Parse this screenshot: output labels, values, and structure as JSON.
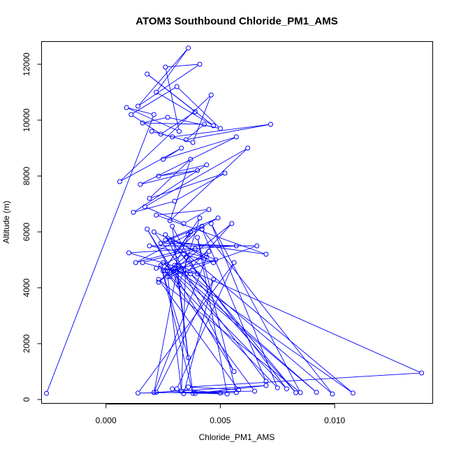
{
  "chart_data": {
    "type": "line",
    "title": "ATOM3 Southbound Chloride_PM1_AMS",
    "xlabel": "Chloride_PM1_AMS",
    "ylabel": "Altitude (m)",
    "xlim": [
      -0.0028,
      0.0143
    ],
    "ylim": [
      -150,
      12800
    ],
    "xticks": [
      0.0,
      0.005,
      0.01
    ],
    "xtick_labels": [
      "0.000",
      "0.005",
      "0.010"
    ],
    "yticks": [
      0,
      2000,
      4000,
      6000,
      8000,
      10000,
      12000
    ],
    "ytick_labels": [
      "0",
      "2000",
      "4000",
      "6000",
      "8000",
      "10000",
      "12000"
    ],
    "grid": false,
    "series_color": "#0000ff",
    "marker": "open-circle",
    "series": [
      {
        "x": [
          -0.0026,
          0.0021,
          0.0009,
          0.0032,
          0.0026,
          0.0041,
          0.0014,
          0.0036,
          0.0022,
          0.0047,
          0.0018,
          0.0039,
          0.0024,
          0.0011,
          0.0031,
          0.005,
          0.0027,
          0.0016,
          0.0043,
          0.0035,
          0.0072,
          0.0029,
          0.002,
          0.0038,
          0.0046,
          0.0006,
          0.0033,
          0.0025,
          0.0057,
          0.0015,
          0.004,
          0.0023,
          0.0044,
          0.0012,
          0.003,
          0.0052,
          0.0019,
          0.0037,
          0.0028,
          0.0062,
          0.0017,
          0.0034,
          0.0045,
          0.0022,
          0.007,
          0.0026,
          0.0049,
          0.0036,
          0.0013,
          0.0031,
          0.0042,
          0.0024,
          0.0057,
          0.001,
          0.0033,
          0.0021,
          0.0048,
          0.0027,
          0.0039,
          0.0016,
          0.0035,
          0.0055,
          0.0023,
          0.003,
          0.0044,
          0.0019,
          0.0066,
          0.0028,
          0.0037,
          0.0025,
          0.0041,
          0.0032,
          0.0018,
          0.0056,
          0.0026,
          0.0047,
          0.0034,
          0.0022,
          0.004,
          0.0029,
          0.0036,
          0.0024,
          0.0038,
          0.0031,
          0.0021,
          0.0045,
          0.0027,
          0.0033,
          0.0035,
          0.0079,
          0.0025,
          0.0092,
          0.003,
          0.0108,
          0.0028,
          0.0083,
          0.0037,
          0.0099,
          0.0042,
          0.007,
          0.0032,
          0.0138,
          0.0036,
          0.0058,
          0.0023,
          0.0085,
          0.0046,
          0.0075,
          0.0026,
          0.0065,
          0.0014,
          0.0056,
          0.0031,
          0.005,
          0.0039,
          0.007,
          0.0021,
          0.0057,
          0.004,
          0.0053,
          0.0022,
          0.0047,
          0.0034,
          0.0029
        ],
        "y": [
          220,
          10200,
          10450,
          9600,
          11900,
          12000,
          10500,
          12580,
          11000,
          9800,
          11650,
          10300,
          9500,
          10200,
          11200,
          9700,
          10100,
          9900,
          9850,
          9300,
          9850,
          9400,
          9600,
          9200,
          10900,
          7800,
          9000,
          8600,
          9400,
          7700,
          8200,
          8000,
          8400,
          6700,
          7100,
          8100,
          7200,
          8600,
          6400,
          9000,
          6900,
          6300,
          6800,
          6600,
          5200,
          5700,
          6500,
          5900,
          4900,
          5300,
          6200,
          5600,
          5500,
          5250,
          4700,
          6000,
          5000,
          4600,
          5400,
          4900,
          4500,
          6300,
          4200,
          4800,
          5100,
          5500,
          5500,
          4400,
          6000,
          4600,
          6500,
          4100,
          6100,
          1000,
          5900,
          4900,
          5200,
          4700,
          4500,
          6200,
          1500,
          4800,
          220,
          4600,
          250,
          5300,
          4400,
          300,
          5100,
          380,
          4900,
          260,
          4700,
          230,
          5700,
          240,
          4500,
          200,
          6100,
          650,
          4800,
          950,
          450,
          350,
          4300,
          250,
          6300,
          420,
          4600,
          300,
          230,
          4900,
          380,
          230,
          220,
          500,
          250,
          250,
          5800,
          200,
          260,
          4300,
          210,
          380
        ]
      }
    ]
  }
}
